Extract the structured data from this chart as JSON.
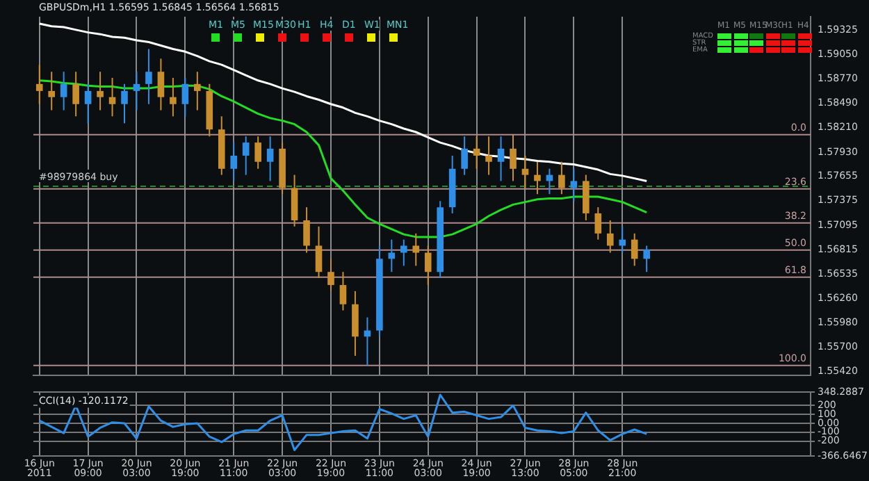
{
  "chart_data": [
    {
      "type": "candlestick",
      "title": "GBPUSDm,H1 1.56595 1.56845 1.56564 1.56815",
      "ohlc": [
        [
          1.5871,
          1.5893,
          1.5848,
          1.5863
        ],
        [
          1.5863,
          1.5885,
          1.5841,
          1.5856
        ],
        [
          1.5856,
          1.5885,
          1.5841,
          1.5871
        ],
        [
          1.5871,
          1.5885,
          1.5834,
          1.5848
        ],
        [
          1.5848,
          1.5871,
          1.5826,
          1.5863
        ],
        [
          1.5863,
          1.5885,
          1.5841,
          1.5856
        ],
        [
          1.5856,
          1.5878,
          1.5834,
          1.5848
        ],
        [
          1.5848,
          1.5871,
          1.5826,
          1.5863
        ],
        [
          1.5863,
          1.5885,
          1.5841,
          1.5871
        ],
        [
          1.5871,
          1.5911,
          1.5848,
          1.5885
        ],
        [
          1.5885,
          1.59,
          1.5841,
          1.5856
        ],
        [
          1.5856,
          1.5878,
          1.5834,
          1.5848
        ],
        [
          1.5848,
          1.5878,
          1.5834,
          1.5871
        ],
        [
          1.5871,
          1.5885,
          1.5841,
          1.5863
        ],
        [
          1.5863,
          1.5871,
          1.5811,
          1.5819
        ],
        [
          1.5819,
          1.5834,
          1.5767,
          1.5774
        ],
        [
          1.5774,
          1.5804,
          1.576,
          1.5789
        ],
        [
          1.5789,
          1.5811,
          1.5767,
          1.5804
        ],
        [
          1.5804,
          1.5811,
          1.5774,
          1.5782
        ],
        [
          1.5782,
          1.5811,
          1.576,
          1.5797
        ],
        [
          1.5797,
          1.5804,
          1.5745,
          1.5752
        ],
        [
          1.5752,
          1.5767,
          1.5708,
          1.5715
        ],
        [
          1.5715,
          1.573,
          1.5678,
          1.5686
        ],
        [
          1.5686,
          1.5708,
          1.5649,
          1.5656
        ],
        [
          1.5656,
          1.5671,
          1.5634,
          1.5641
        ],
        [
          1.5641,
          1.5656,
          1.5612,
          1.5619
        ],
        [
          1.5619,
          1.5634,
          1.556,
          1.5582
        ],
        [
          1.5582,
          1.5604,
          1.5549,
          1.5589
        ],
        [
          1.5589,
          1.5686,
          1.5582,
          1.5671
        ],
        [
          1.5671,
          1.5693,
          1.5656,
          1.5678
        ],
        [
          1.5678,
          1.5693,
          1.5663,
          1.5686
        ],
        [
          1.5686,
          1.57,
          1.5663,
          1.5678
        ],
        [
          1.5678,
          1.5686,
          1.5641,
          1.5656
        ],
        [
          1.5656,
          1.5737,
          1.5649,
          1.573
        ],
        [
          1.573,
          1.5789,
          1.5723,
          1.5774
        ],
        [
          1.5774,
          1.5811,
          1.5767,
          1.5797
        ],
        [
          1.5797,
          1.5811,
          1.5774,
          1.5789
        ],
        [
          1.5789,
          1.5811,
          1.5767,
          1.5782
        ],
        [
          1.5782,
          1.5811,
          1.576,
          1.5797
        ],
        [
          1.5797,
          1.5813,
          1.576,
          1.5774
        ],
        [
          1.5774,
          1.5789,
          1.5752,
          1.5767
        ],
        [
          1.5767,
          1.5782,
          1.5745,
          1.576
        ],
        [
          1.576,
          1.5774,
          1.5745,
          1.5767
        ],
        [
          1.5767,
          1.5782,
          1.5745,
          1.5752
        ],
        [
          1.5752,
          1.5774,
          1.5737,
          1.576
        ],
        [
          1.576,
          1.5767,
          1.5715,
          1.5723
        ],
        [
          1.5723,
          1.573,
          1.5693,
          1.57
        ],
        [
          1.57,
          1.5715,
          1.5678,
          1.5686
        ],
        [
          1.5686,
          1.5708,
          1.5678,
          1.5693
        ],
        [
          1.5693,
          1.57,
          1.5663,
          1.5671
        ],
        [
          1.5671,
          1.5686,
          1.5656,
          1.56815
        ],
        null,
        null,
        null,
        null,
        null,
        null,
        null,
        null,
        null,
        null,
        null,
        null,
        null
      ],
      "colors": [
        "#c98f2e",
        "#c98f2e",
        "#2f8ee6",
        "#c98f2e",
        "#2f8ee6",
        "#c98f2e",
        "#c98f2e",
        "#2f8ee6",
        "#2f8ee6",
        "#2f8ee6",
        "#c98f2e",
        "#c98f2e",
        "#2f8ee6",
        "#c98f2e",
        "#c98f2e",
        "#c98f2e",
        "#2f8ee6",
        "#2f8ee6",
        "#c98f2e",
        "#2f8ee6",
        "#c98f2e",
        "#c98f2e",
        "#c98f2e",
        "#c98f2e",
        "#c98f2e",
        "#c98f2e",
        "#c98f2e",
        "#2f8ee6",
        "#2f8ee6",
        "#2f8ee6",
        "#2f8ee6",
        "#c98f2e",
        "#c98f2e",
        "#2f8ee6",
        "#2f8ee6",
        "#2f8ee6",
        "#c98f2e",
        "#c98f2e",
        "#2f8ee6",
        "#c98f2e",
        "#c98f2e",
        "#c98f2e",
        "#2f8ee6",
        "#c98f2e",
        "#2f8ee6",
        "#c98f2e",
        "#c98f2e",
        "#c98f2e",
        "#2f8ee6",
        "#c98f2e",
        "#2f8ee6",
        null,
        null,
        null,
        null,
        null,
        null,
        null,
        null,
        null,
        null,
        null,
        null,
        null
      ],
      "series": [
        {
          "type": "line",
          "color": "#ffffff",
          "values": [
            1.594,
            1.5937,
            1.5936,
            1.5933,
            1.593,
            1.5928,
            1.5925,
            1.5924,
            1.5921,
            1.5919,
            1.5915,
            1.5911,
            1.5908,
            1.5903,
            1.5897,
            1.5893,
            1.5887,
            1.5881,
            1.5875,
            1.5871,
            1.5866,
            1.5862,
            1.5857,
            1.5853,
            1.5848,
            1.5844,
            1.5838,
            1.5834,
            1.5829,
            1.5825,
            1.582,
            1.5816,
            1.581,
            1.5804,
            1.58,
            1.5795,
            1.5792,
            1.5789,
            1.5788,
            1.5786,
            1.5785,
            1.5783,
            1.5782,
            1.578,
            1.5779,
            1.5776,
            1.5773,
            1.5768,
            1.5766,
            1.5763,
            1.576,
            null,
            null,
            null,
            null,
            null,
            null,
            null,
            null,
            null,
            null,
            null,
            null,
            null
          ]
        },
        {
          "type": "line",
          "color": "#22dd22",
          "values": [
            1.5875,
            1.5874,
            1.5872,
            1.5871,
            1.5869,
            1.5868,
            1.5868,
            1.5866,
            1.5866,
            1.5866,
            1.5868,
            1.5868,
            1.5869,
            1.5869,
            1.5865,
            1.5857,
            1.5851,
            1.5844,
            1.5837,
            1.5832,
            1.5829,
            1.5825,
            1.5816,
            1.5801,
            1.5763,
            1.5749,
            1.5733,
            1.5718,
            1.5711,
            1.5705,
            1.5699,
            1.5696,
            1.5696,
            1.5696,
            1.5699,
            1.5705,
            1.5711,
            1.572,
            1.5727,
            1.5733,
            1.5736,
            1.5739,
            1.574,
            1.574,
            1.5742,
            1.5742,
            1.5742,
            1.5739,
            1.5736,
            1.573,
            1.5724,
            null,
            null,
            null,
            null,
            null,
            null,
            null,
            null,
            null,
            null,
            null,
            null,
            null
          ]
        }
      ],
      "ylim": [
        1.5538,
        1.5948
      ],
      "yticks": [
        1.59325,
        {
          "value": 1.5905,
          "label": "1.59050"
        },
        {
          "value": 1.5877,
          "label": "1.58770"
        },
        {
          "value": 1.5849,
          "label": "1.58490"
        },
        {
          "value": 1.5821,
          "label": "1.58210"
        },
        {
          "value": 1.5793,
          "label": "1.57930"
        },
        1.57655,
        1.57375,
        1.57095,
        1.56815,
        1.56535,
        {
          "value": 1.5626,
          "label": "1.56260"
        },
        {
          "value": 1.5598,
          "label": "1.55980"
        },
        {
          "value": 1.557,
          "label": "1.55700"
        },
        {
          "value": 1.5542,
          "label": "1.55420"
        }
      ],
      "ref_lines": [
        {
          "axis": "y",
          "value": 1.5813,
          "color": "#b08a8a"
        },
        {
          "axis": "y",
          "value": 1.5751,
          "color": "#b08a8a"
        },
        {
          "axis": "y",
          "value": 1.5712,
          "color": "#b08a8a"
        },
        {
          "axis": "y",
          "value": 1.5681,
          "color": "#b08a8a"
        },
        {
          "axis": "y",
          "value": 1.565,
          "color": "#b08a8a"
        },
        {
          "axis": "y",
          "value": 1.5549,
          "color": "#b08a8a"
        },
        {
          "axis": "y",
          "value": 1.5754,
          "label": "#98979864 buy",
          "color": "#1f8f1f",
          "line_style": "dashed"
        }
      ],
      "annotations": [
        "M1",
        "M5",
        "M15",
        "M30",
        "H1",
        "H4",
        "D1",
        "W1",
        "MN1",
        "M1",
        "M5",
        "M15",
        "M30",
        "H1",
        "H4",
        "MACD",
        "STR",
        "EMA",
        {
          "text": "0.0",
          "y": 1.5813
        },
        {
          "text": "23.6",
          "y": 1.5751
        },
        {
          "text": "38.2",
          "y": 1.5712
        },
        {
          "text": "50.0",
          "y": 1.5681
        },
        {
          "text": "61.8",
          "y": 1.565
        },
        {
          "text": "100.0",
          "y": 1.5549
        }
      ],
      "tick_labels": "y",
      "grid": "x",
      "marker": "none"
    },
    {
      "type": "line",
      "title": "CCI(14) -120.1172",
      "categories": [
        "16 Jun 2011",
        null,
        null,
        null,
        "17 Jun 09:00",
        null,
        null,
        null,
        "20 Jun 03:00",
        null,
        null,
        null,
        "20 Jun 19:00",
        null,
        null,
        null,
        "21 Jun 11:00",
        null,
        null,
        null,
        "22 Jun 03:00",
        null,
        null,
        null,
        "22 Jun 19:00",
        null,
        null,
        null,
        "23 Jun 11:00",
        null,
        null,
        null,
        "24 Jun 03:00",
        null,
        null,
        null,
        "24 Jun 19:00",
        null,
        null,
        null,
        "27 Jun 13:00",
        null,
        null,
        null,
        "28 Jun 05:00",
        null,
        null,
        null,
        "28 Jun 21:00",
        null,
        null,
        null,
        null,
        null,
        null,
        null,
        null,
        null,
        null,
        null,
        null,
        null,
        null,
        null
      ],
      "series": [
        {
          "color": "#2f8ee6",
          "values": [
            30,
            -40,
            -110,
            200,
            -150,
            -50,
            10,
            0,
            -170,
            190,
            30,
            -40,
            -10,
            0,
            -150,
            -210,
            -120,
            -80,
            -80,
            30,
            90,
            -300,
            -130,
            -130,
            -110,
            -90,
            -80,
            -170,
            160,
            110,
            50,
            90,
            -150,
            320,
            120,
            130,
            90,
            50,
            70,
            200,
            -50,
            -80,
            -90,
            -110,
            -90,
            120,
            -80,
            -190,
            -120,
            -70,
            -120.1172,
            null,
            null,
            null,
            null,
            null,
            null,
            null,
            null,
            null,
            null,
            null,
            null,
            null
          ]
        }
      ],
      "ylim": [
        -366.6467,
        348.2887
      ],
      "yticks": [
        348.2887,
        200,
        100,
        {
          "value": 0,
          "label": "0.00"
        },
        -100,
        -200,
        -366.6467
      ],
      "grid": true,
      "marker": "none"
    }
  ]
}
